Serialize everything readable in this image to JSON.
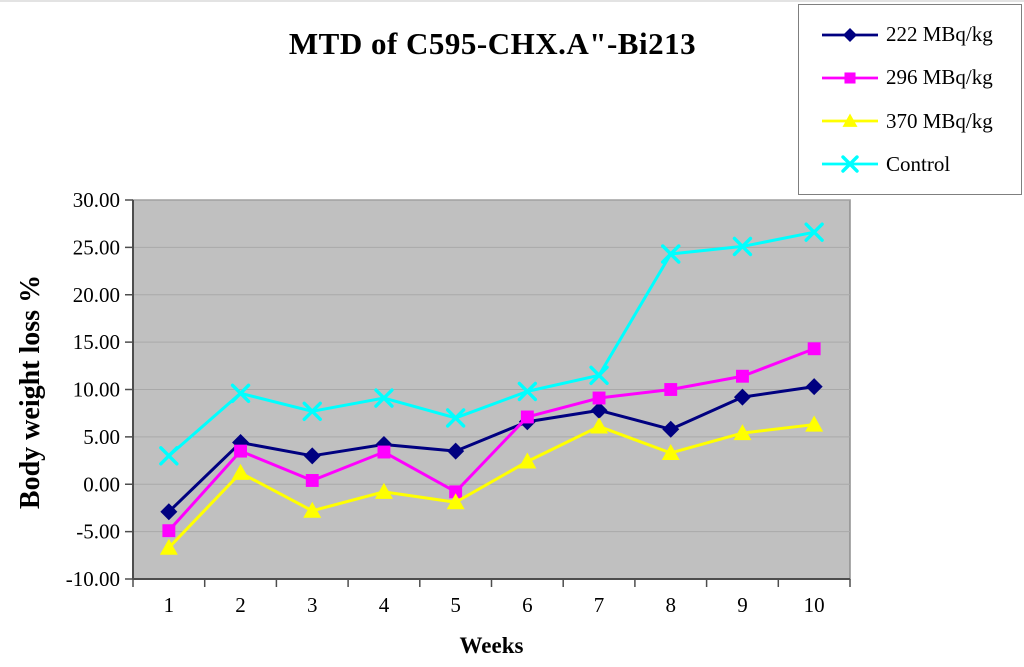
{
  "chart_data": {
    "type": "line",
    "title": "MTD of C595-CHX.A\"-Bi213",
    "xlabel": "Weeks",
    "ylabel": "Body weight loss %",
    "x": [
      1,
      2,
      3,
      4,
      5,
      6,
      7,
      8,
      9,
      10
    ],
    "ylim": [
      -10,
      30
    ],
    "ytick_step": 5,
    "ytick_decimals": 2,
    "grid": true,
    "plot_background": "#c0c0c0",
    "gridline_color": "#a9a9a9",
    "axis_color": "#4d4d4d",
    "legend_position": "top-right",
    "series": [
      {
        "name": "222 MBq/kg",
        "marker": "diamond",
        "color": "#000080",
        "values": [
          -2.9,
          4.4,
          3.0,
          4.2,
          3.5,
          6.6,
          7.8,
          5.8,
          9.2,
          10.3
        ]
      },
      {
        "name": "296 MBq/kg",
        "marker": "square",
        "color": "#ff00ff",
        "values": [
          -4.9,
          3.5,
          0.4,
          3.4,
          -0.8,
          7.1,
          9.1,
          10.0,
          11.4,
          14.3
        ]
      },
      {
        "name": "370 MBq/kg",
        "marker": "triangle",
        "color": "#ffff00",
        "values": [
          -6.7,
          1.2,
          -2.8,
          -0.8,
          -1.9,
          2.4,
          6.1,
          3.3,
          5.4,
          6.3
        ]
      },
      {
        "name": "Control",
        "marker": "x",
        "color": "#00ffff",
        "values": [
          3.0,
          9.6,
          7.7,
          9.1,
          7.0,
          9.8,
          11.5,
          24.3,
          25.1,
          26.6
        ]
      }
    ]
  }
}
